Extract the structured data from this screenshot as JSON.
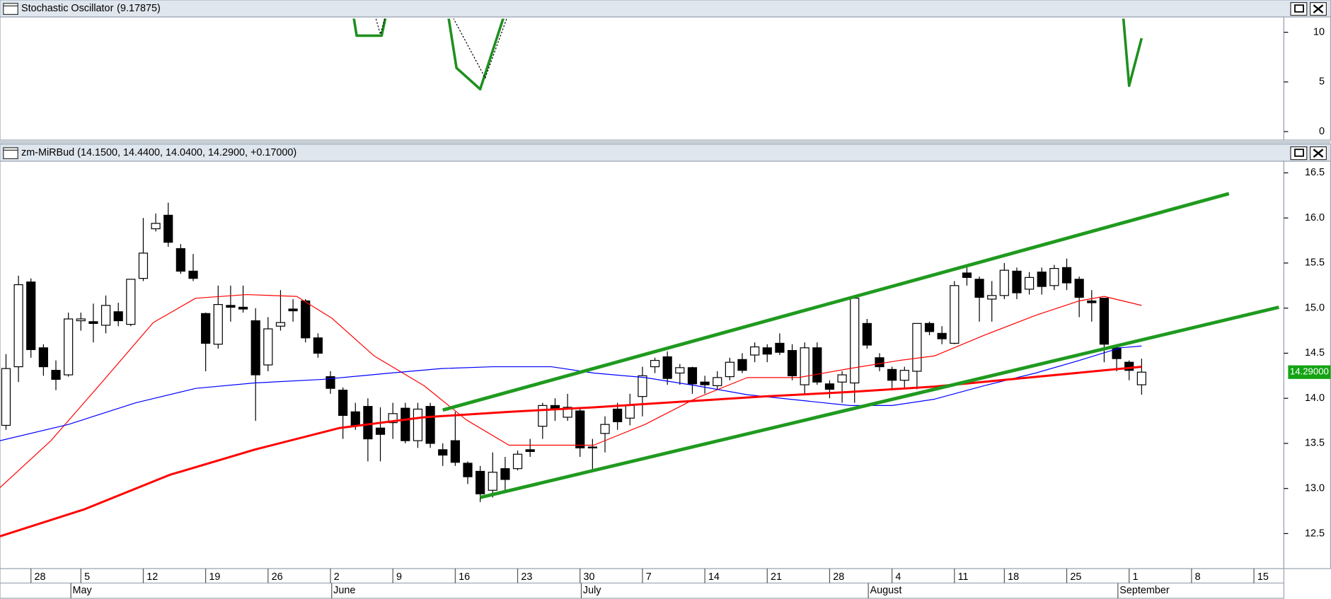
{
  "chart_data": [
    {
      "type": "line",
      "title": "Stochastic Oscillator",
      "title_value": "(9.17875)",
      "title_value_color": "#1a8f1a",
      "xlim": [
        -0.48,
        102.4
      ],
      "ylim": [
        -0.85,
        11.37
      ],
      "yticks": [
        0,
        5,
        10
      ],
      "series": [
        {
          "color": "#1f8f1f",
          "width": 3,
          "dash": false,
          "x": [
            27.8,
            28.1,
            30.1,
            30.5,
            35.4,
            36.1,
            38.0,
            40.0,
            89.5,
            90,
            91
          ],
          "values": [
            12,
            9.66,
            9.66,
            12,
            12,
            6.41,
            4.27,
            12,
            12,
            4.62,
            9.4
          ]
        },
        {
          "color": "#000000",
          "width": 1,
          "dash": true,
          "x": [
            29.5,
            30,
            30.5,
            35.6,
            38.4,
            40.3
          ],
          "values": [
            12,
            9.8,
            12,
            12,
            5.4,
            12
          ]
        }
      ]
    },
    {
      "type": "candlestick",
      "title": "zm-MiRBud (14.1500, 14.4400, 14.0400, 14.2900, +0.17000)",
      "xlim": [
        -0.48,
        102.4
      ],
      "ylim": [
        12.13,
        16.61
      ],
      "yticks": [
        12.5,
        {
          "value": 13,
          "label": "13.0"
        },
        13.5,
        {
          "value": 14,
          "label": "14.0"
        },
        14.5,
        {
          "value": 15,
          "label": "15.0"
        },
        15.5,
        {
          "value": 16,
          "label": "16.0"
        },
        16.5
      ],
      "xticks": [
        {
          "value": 2,
          "label": "28"
        },
        {
          "value": 6,
          "label": "5"
        },
        {
          "value": 11,
          "label": "12"
        },
        {
          "value": 16,
          "label": "19"
        },
        {
          "value": 21,
          "label": "26"
        },
        {
          "value": 26,
          "label": "2"
        },
        {
          "value": 31,
          "label": "9"
        },
        {
          "value": 36,
          "label": "16"
        },
        {
          "value": 41,
          "label": "23"
        },
        {
          "value": 46,
          "label": "30"
        },
        {
          "value": 51,
          "label": "7"
        },
        {
          "value": 56,
          "label": "14"
        },
        {
          "value": 61,
          "label": "21"
        },
        {
          "value": 66,
          "label": "28"
        },
        {
          "value": 71,
          "label": "4"
        },
        {
          "value": 76,
          "label": "11"
        },
        {
          "value": 80,
          "label": "18"
        },
        {
          "value": 85,
          "label": "25"
        },
        {
          "value": 90,
          "label": "1"
        },
        {
          "value": 95,
          "label": "8"
        },
        {
          "value": 100,
          "label": "15"
        }
      ],
      "month_ticks": [
        {
          "value": 5.2,
          "label": "May"
        },
        {
          "value": 26.1,
          "label": "June"
        },
        {
          "value": 46.1,
          "label": "July"
        },
        {
          "value": 69.1,
          "label": "August"
        },
        {
          "value": 89.1,
          "label": "September"
        }
      ],
      "last_price": {
        "value": 14.29,
        "label": "14.29000"
      },
      "last_price_color": "#13a313",
      "x": [
        0,
        1,
        2,
        3,
        4,
        5,
        6,
        7,
        8,
        9,
        10,
        11,
        12,
        13,
        14,
        15,
        16,
        17,
        18,
        19,
        20,
        21,
        22,
        23,
        24,
        25,
        26,
        27,
        28,
        29,
        30,
        31,
        32,
        33,
        34,
        35,
        36,
        37,
        38,
        39,
        40,
        41,
        42,
        43,
        44,
        45,
        46,
        47,
        48,
        49,
        50,
        51,
        52,
        53,
        54,
        55,
        56,
        57,
        58,
        59,
        60,
        61,
        62,
        63,
        64,
        65,
        66,
        67,
        68,
        69,
        70,
        71,
        72,
        73,
        74,
        75,
        76,
        77,
        78,
        79,
        80,
        81,
        82,
        83,
        84,
        85,
        86,
        87,
        88,
        89,
        90,
        91
      ],
      "open": [
        13.7,
        14.35,
        15.29,
        14.56,
        14.31,
        14.26,
        14.86,
        14.85,
        14.81,
        14.96,
        14.82,
        15.33,
        15.88,
        16.03,
        15.66,
        15.41,
        14.94,
        14.6,
        15.03,
        15.01,
        14.86,
        14.37,
        14.8,
        14.99,
        15.08,
        14.67,
        14.24,
        14.09,
        13.85,
        13.91,
        13.67,
        13.73,
        13.89,
        13.53,
        13.91,
        13.43,
        13.53,
        13.28,
        13.19,
        12.98,
        13.22,
        13.22,
        13.43,
        13.69,
        13.92,
        13.79,
        13.86,
        13.46,
        13.61,
        13.88,
        13.78,
        14.02,
        14.35,
        14.46,
        14.28,
        14.34,
        14.18,
        14.14,
        14.24,
        14.43,
        14.48,
        14.56,
        14.61,
        14.53,
        14.15,
        14.56,
        14.16,
        14.18,
        14.17,
        14.83,
        14.45,
        14.32,
        14.2,
        14.3,
        14.83,
        14.72,
        14.61,
        15.39,
        15.32,
        15.1,
        15.14,
        15.41,
        15.21,
        15.4,
        15.25,
        15.45,
        15.32,
        15.08,
        15.11,
        14.56,
        14.4,
        14.15
      ],
      "high": [
        14.49,
        15.36,
        15.33,
        14.6,
        14.42,
        14.95,
        14.95,
        15.05,
        15.14,
        15.06,
        15.32,
        16.0,
        16.05,
        16.17,
        15.71,
        15.6,
        14.95,
        15.25,
        15.25,
        15.25,
        15.0,
        14.9,
        15.2,
        15.1,
        15.1,
        14.72,
        14.3,
        14.12,
        13.95,
        14.0,
        13.9,
        13.95,
        13.95,
        13.95,
        13.95,
        13.5,
        13.85,
        13.3,
        13.25,
        13.4,
        13.35,
        13.42,
        13.55,
        13.95,
        14.0,
        14.05,
        13.9,
        13.55,
        13.8,
        13.95,
        14.05,
        14.35,
        14.45,
        14.52,
        14.38,
        14.35,
        14.25,
        14.3,
        14.45,
        14.5,
        14.62,
        14.6,
        14.72,
        14.6,
        14.62,
        14.62,
        14.2,
        14.3,
        15.11,
        14.88,
        14.5,
        14.35,
        14.35,
        14.83,
        14.85,
        14.8,
        15.3,
        15.45,
        15.35,
        15.3,
        15.5,
        15.45,
        15.4,
        15.45,
        15.48,
        15.55,
        15.35,
        15.2,
        15.11,
        14.6,
        14.42,
        14.44
      ],
      "low": [
        13.65,
        14.18,
        14.45,
        14.25,
        14.09,
        14.24,
        14.75,
        14.62,
        14.72,
        14.8,
        14.8,
        15.3,
        15.85,
        15.68,
        15.38,
        15.3,
        14.3,
        14.55,
        14.85,
        14.95,
        13.75,
        14.3,
        14.75,
        14.85,
        14.62,
        14.45,
        14.05,
        13.55,
        13.65,
        13.3,
        13.3,
        13.55,
        13.5,
        13.45,
        13.45,
        13.25,
        13.25,
        13.05,
        12.85,
        12.9,
        12.95,
        13.2,
        13.35,
        13.55,
        13.75,
        13.75,
        13.35,
        13.2,
        13.4,
        13.65,
        13.7,
        13.8,
        14.28,
        14.15,
        14.15,
        14.05,
        14.05,
        14.1,
        14.2,
        14.28,
        14.4,
        14.4,
        14.48,
        14.2,
        14.05,
        14.15,
        14.0,
        13.95,
        13.95,
        14.55,
        14.3,
        14.1,
        14.12,
        14.1,
        14.7,
        14.6,
        14.6,
        15.25,
        14.85,
        14.85,
        15.1,
        15.1,
        15.15,
        15.15,
        15.2,
        15.2,
        14.9,
        14.85,
        14.4,
        14.3,
        14.2,
        14.04
      ],
      "close": [
        14.33,
        15.26,
        14.54,
        14.35,
        14.21,
        14.88,
        14.88,
        14.83,
        15.03,
        14.86,
        15.32,
        15.61,
        15.94,
        15.73,
        15.41,
        15.33,
        14.61,
        15.04,
        15.01,
        14.99,
        14.26,
        14.77,
        14.84,
        14.97,
        14.67,
        14.5,
        14.11,
        13.81,
        13.7,
        13.55,
        13.6,
        13.83,
        13.53,
        13.88,
        13.5,
        13.37,
        13.29,
        13.13,
        12.94,
        13.18,
        13.1,
        13.38,
        13.41,
        13.92,
        13.88,
        13.9,
        13.45,
        13.45,
        13.71,
        13.74,
        13.92,
        14.25,
        14.42,
        14.22,
        14.34,
        14.16,
        14.15,
        14.23,
        14.4,
        14.31,
        14.57,
        14.49,
        14.51,
        14.25,
        14.56,
        14.18,
        14.1,
        14.26,
        15.11,
        14.59,
        14.35,
        14.2,
        14.31,
        14.83,
        14.74,
        14.66,
        15.25,
        15.34,
        15.12,
        15.14,
        15.42,
        15.17,
        15.34,
        15.24,
        15.44,
        15.28,
        15.12,
        15.06,
        14.6,
        14.44,
        14.31,
        14.29
      ],
      "lines": [
        {
          "color": "#ff0000",
          "width": 1,
          "dash": false,
          "x": [
            -0.48,
            3.6,
            7.7,
            11.8,
            15.2,
            19.3,
            23.3,
            26.1,
            29.5,
            33.5,
            36.9,
            40.3,
            43.7,
            47.1,
            51.2,
            55.3,
            59.4,
            63.5,
            67.6,
            71.6,
            74.4,
            78.4,
            82.5,
            86,
            88,
            91
          ],
          "values": [
            13.01,
            13.53,
            14.18,
            14.84,
            15.11,
            15.15,
            15.13,
            14.89,
            14.47,
            14.14,
            13.76,
            13.48,
            13.48,
            13.48,
            13.71,
            14.0,
            14.23,
            14.23,
            14.33,
            14.42,
            14.47,
            14.7,
            14.92,
            15.08,
            15.13,
            15.03
          ]
        },
        {
          "color": "#0000ff",
          "width": 1,
          "dash": false,
          "x": [
            -0.48,
            5,
            10.4,
            15.2,
            19.9,
            25.4,
            30.8,
            34.9,
            39,
            43.7,
            47.1,
            51.2,
            55.3,
            59.4,
            63.5,
            67.6,
            71,
            74.4,
            78.4,
            82.5,
            86,
            89.3,
            91
          ],
          "values": [
            13.53,
            13.71,
            13.95,
            14.11,
            14.17,
            14.21,
            14.28,
            14.33,
            14.35,
            14.35,
            14.28,
            14.23,
            14.14,
            14.04,
            13.98,
            13.92,
            13.92,
            13.99,
            14.14,
            14.28,
            14.42,
            14.56,
            14.58
          ]
        },
        {
          "color": "#ff0000",
          "width": 2.5,
          "dash": false,
          "x": [
            -0.48,
            6.3,
            13.1,
            19.9,
            26.7,
            33.5,
            40.3,
            47.1,
            53.9,
            60.7,
            67.6,
            74.4,
            81.2,
            88,
            91
          ],
          "values": [
            12.47,
            12.77,
            13.15,
            13.43,
            13.67,
            13.79,
            13.85,
            13.9,
            13.96,
            14.02,
            14.07,
            14.13,
            14.22,
            14.31,
            14.35
          ]
        },
        {
          "color": "#1f9a1f",
          "width": 4,
          "dash": false,
          "x": [
            35.0,
            98.0
          ],
          "values": [
            13.87,
            16.27
          ]
        },
        {
          "color": "#1f9a1f",
          "width": 4,
          "dash": false,
          "x": [
            38.0,
            102.0
          ],
          "values": [
            12.9,
            15.01
          ]
        }
      ]
    }
  ]
}
